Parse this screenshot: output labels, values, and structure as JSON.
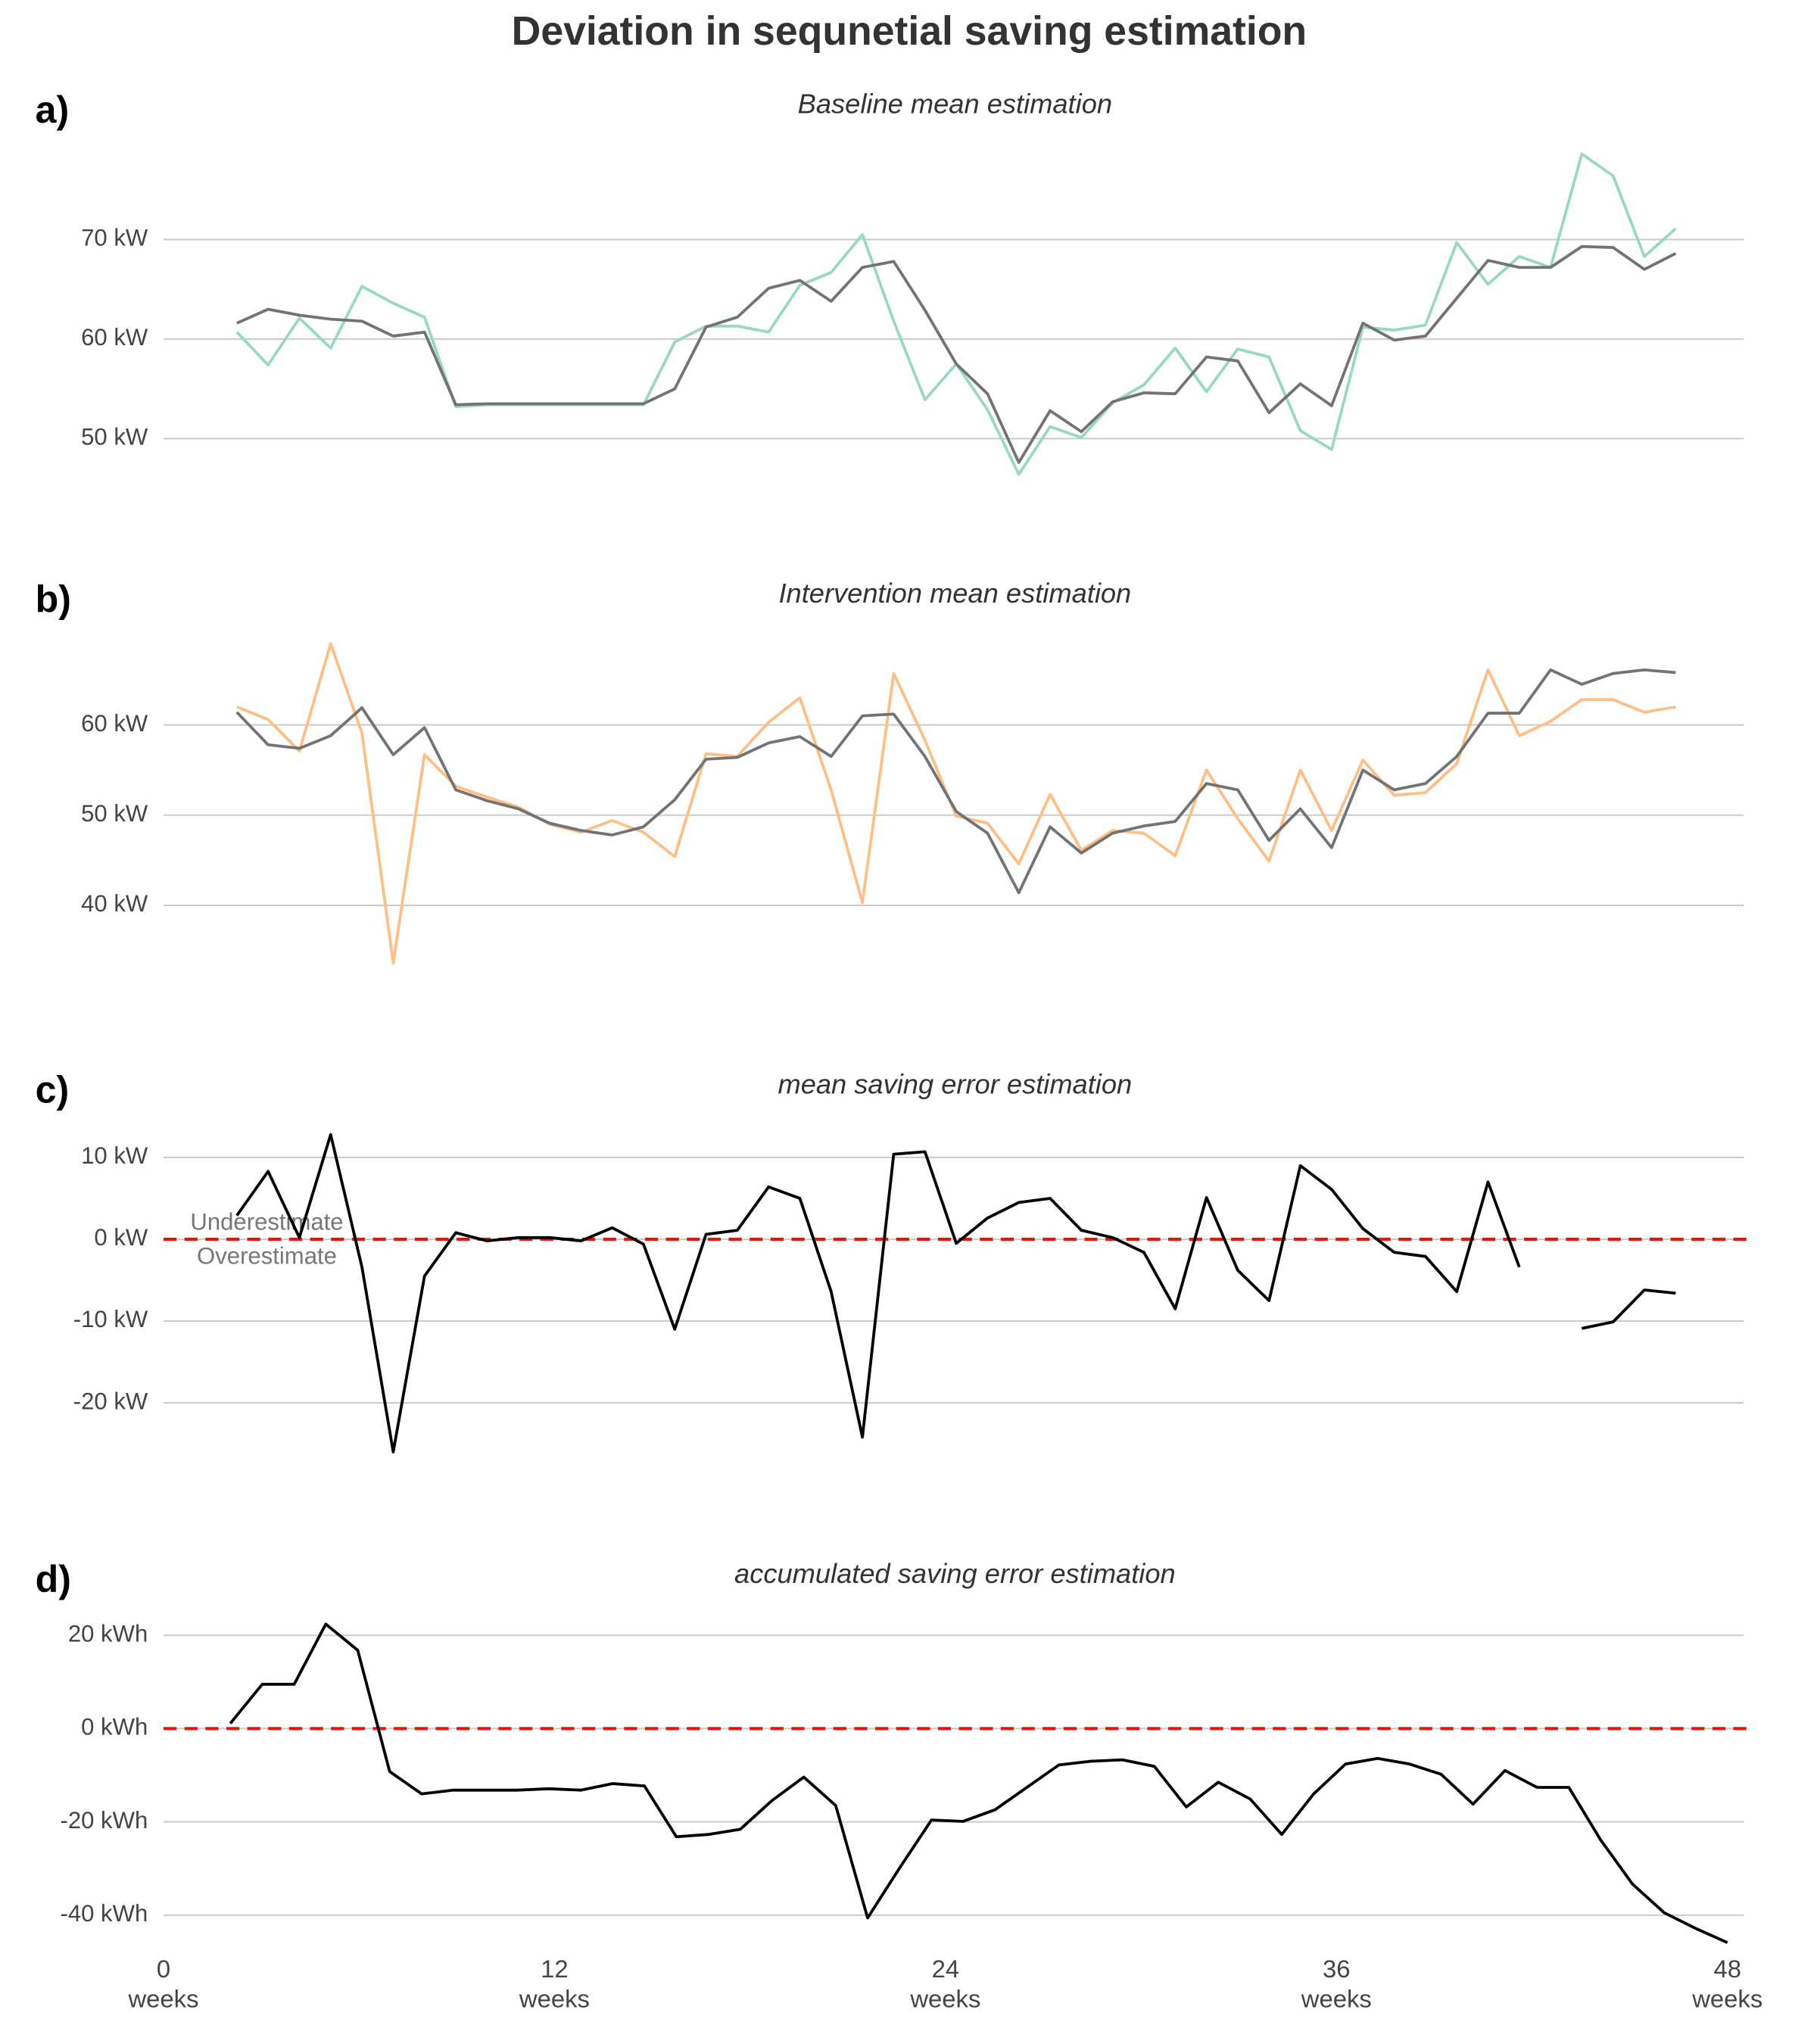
{
  "title": "Deviation in sequnetial saving estimation",
  "chart_data": [
    {
      "type": "line",
      "panel": "a)",
      "title": "Baseline mean estimation",
      "x": [
        2.25,
        3.21,
        4.17,
        5.13,
        6.09,
        7.05,
        8.01,
        8.97,
        9.93,
        10.89,
        11.85,
        12.81,
        13.77,
        14.73,
        15.69,
        16.65,
        17.61,
        18.57,
        19.53,
        20.49,
        21.45,
        22.41,
        23.37,
        24.33,
        25.29,
        26.25,
        27.21,
        28.17,
        29.13,
        30.09,
        31.05,
        32.01,
        32.97,
        33.93,
        34.89,
        35.85,
        36.81,
        37.77,
        38.73,
        39.69,
        40.65,
        41.61,
        42.57,
        43.53,
        44.49,
        45.45,
        46.41
      ],
      "series": [
        {
          "color": "#99d7c6",
          "values": [
            60.7,
            57.4,
            62.1,
            59.1,
            65.3,
            63.6,
            62.2,
            53.2,
            53.4,
            53.4,
            53.4,
            53.4,
            53.4,
            53.4,
            59.7,
            61.3,
            61.3,
            60.7,
            65.4,
            66.7,
            70.5,
            61.8,
            53.9,
            57.5,
            52.9,
            46.4,
            51.2,
            50.1,
            53.6,
            55.4,
            59.1,
            54.7,
            59.0,
            58.2,
            50.8,
            48.9,
            61.2,
            60.9,
            61.4,
            69.7,
            65.5,
            68.3,
            67.2,
            78.6,
            76.4,
            68.3,
            71.1
          ]
        },
        {
          "color": "#737373",
          "values": [
            61.6,
            63.0,
            62.4,
            62.0,
            61.8,
            60.3,
            60.7,
            53.4,
            53.5,
            53.5,
            53.5,
            53.5,
            53.5,
            53.5,
            55.0,
            61.2,
            62.2,
            65.1,
            65.9,
            63.8,
            67.2,
            67.8,
            62.9,
            57.5,
            54.5,
            47.6,
            52.8,
            50.7,
            53.7,
            54.6,
            54.5,
            58.2,
            57.8,
            52.6,
            55.5,
            53.3,
            61.6,
            59.9,
            60.3,
            64.1,
            67.9,
            67.2,
            67.2,
            69.3,
            69.2,
            67.0,
            68.6
          ]
        }
      ],
      "xlim": [
        0,
        48.5
      ],
      "ylim": [
        42,
        80
      ],
      "yticks": [
        {
          "value": 50,
          "label": "50 kW"
        },
        {
          "value": 60,
          "label": "60 kW"
        },
        {
          "value": 70,
          "label": "70 kW"
        }
      ],
      "grid": true
    },
    {
      "type": "line",
      "panel": "b)",
      "title": "Intervention mean estimation",
      "x": [
        2.25,
        3.21,
        4.17,
        5.13,
        6.09,
        7.05,
        8.01,
        8.97,
        9.93,
        10.89,
        11.85,
        12.81,
        13.77,
        14.73,
        15.69,
        16.65,
        17.61,
        18.57,
        19.53,
        20.49,
        21.45,
        22.41,
        23.37,
        24.33,
        25.29,
        26.25,
        27.21,
        28.17,
        29.13,
        30.09,
        31.05,
        32.01,
        32.97,
        33.93,
        34.89,
        35.85,
        36.81,
        37.77,
        38.73,
        39.69,
        40.65,
        41.61,
        42.57,
        43.53,
        44.49,
        45.45,
        46.41
      ],
      "series": [
        {
          "color": "#fdbf86",
          "values": [
            62.0,
            60.6,
            57.1,
            69.0,
            59.1,
            33.6,
            56.7,
            53.2,
            52.0,
            50.9,
            49.0,
            48.1,
            49.4,
            48.1,
            45.4,
            56.8,
            56.5,
            60.3,
            63.0,
            52.8,
            40.3,
            65.7,
            58.3,
            49.9,
            49.1,
            44.6,
            52.3,
            46.1,
            48.3,
            48.0,
            45.5,
            55.0,
            49.6,
            44.9,
            55.0,
            48.3,
            56.1,
            52.2,
            52.5,
            55.7,
            66.1,
            58.8,
            60.4,
            62.8,
            62.8,
            61.4,
            62.0
          ]
        },
        {
          "color": "#737373",
          "values": [
            61.4,
            57.8,
            57.4,
            58.8,
            61.9,
            56.7,
            59.7,
            52.8,
            51.6,
            50.7,
            49.1,
            48.3,
            47.8,
            48.7,
            51.7,
            56.2,
            56.4,
            58.0,
            58.7,
            56.5,
            61.0,
            61.2,
            56.5,
            50.4,
            48.0,
            41.4,
            48.7,
            45.8,
            48.0,
            48.8,
            49.3,
            53.5,
            52.8,
            47.2,
            50.7,
            46.4,
            55.0,
            52.8,
            53.5,
            56.5,
            61.3,
            61.3,
            66.1,
            64.5,
            65.7,
            66.1,
            65.8
          ]
        }
      ],
      "xlim": [
        0,
        48.5
      ],
      "ylim": [
        32,
        70
      ],
      "yticks": [
        {
          "value": 40,
          "label": "40 kW"
        },
        {
          "value": 50,
          "label": "50 kW"
        },
        {
          "value": 60,
          "label": "60 kW"
        }
      ],
      "grid": true
    },
    {
      "type": "line",
      "panel": "c)",
      "title": "mean saving error estimation",
      "x": [
        2.25,
        3.21,
        4.17,
        5.13,
        6.09,
        7.05,
        8.01,
        8.97,
        9.93,
        10.89,
        11.85,
        12.81,
        13.77,
        14.73,
        15.69,
        16.65,
        17.61,
        18.57,
        19.53,
        20.49,
        21.45,
        22.41,
        23.37,
        24.33,
        25.29,
        26.25,
        27.21,
        28.17,
        29.13,
        30.09,
        31.05,
        32.01,
        32.97,
        33.93,
        34.89,
        35.85,
        36.81,
        37.77,
        38.73,
        39.69,
        40.65,
        41.61,
        42.57,
        43.53,
        44.49,
        45.45,
        46.41
      ],
      "series": [
        {
          "color": "#000000",
          "values": [
            2.9,
            8.3,
            0.2,
            12.8,
            -3.4,
            -26.0,
            -4.5,
            0.8,
            -0.2,
            0.2,
            0.2,
            -0.2,
            1.4,
            -0.6,
            -11.0,
            0.6,
            1.1,
            6.4,
            5.0,
            -6.4,
            -24.2,
            10.4,
            10.7,
            -0.5,
            2.6,
            4.5,
            5.0,
            1.1,
            0.2,
            -1.6,
            -8.5,
            5.1,
            -3.8,
            -7.5,
            9.0,
            6.1,
            1.3,
            -1.6,
            -2.1,
            -6.4,
            7.0,
            -3.4,
            null,
            -10.9,
            -10.1,
            -6.2,
            -6.6
          ]
        }
      ],
      "reference_line": 0,
      "annotations": [
        "Underestimate",
        "Overestimate"
      ],
      "xlim": [
        0,
        48.5
      ],
      "ylim": [
        -28,
        16
      ],
      "yticks": [
        {
          "value": -20,
          "label": "-20 kW"
        },
        {
          "value": -10,
          "label": "-10 kW"
        },
        {
          "value": 0,
          "label": "0 kW"
        },
        {
          "value": 10,
          "label": "10 kW"
        }
      ],
      "grid": true
    },
    {
      "type": "line",
      "panel": "d)",
      "title": "accumulated saving error estimation",
      "x": [
        2.05,
        3.03,
        4.01,
        4.98,
        5.96,
        6.94,
        7.92,
        8.9,
        9.87,
        10.85,
        11.83,
        12.81,
        13.79,
        14.76,
        15.74,
        16.72,
        17.7,
        18.68,
        19.65,
        20.63,
        21.61,
        22.59,
        23.57,
        24.54,
        25.52,
        26.5,
        27.48,
        28.46,
        29.43,
        30.41,
        31.39,
        32.37,
        33.35,
        34.32,
        35.3,
        36.28,
        37.26,
        38.24,
        39.21,
        40.19,
        41.17,
        42.15,
        43.13,
        44.1,
        45.08,
        46.06,
        47.04,
        48.0
      ],
      "series": [
        {
          "color": "#000000",
          "values": [
            1.1,
            9.5,
            9.5,
            22.4,
            16.8,
            -9.2,
            -14.0,
            -13.2,
            -13.2,
            -13.2,
            -12.9,
            -13.2,
            -11.8,
            -12.3,
            -23.2,
            -22.7,
            -21.6,
            -15.4,
            -10.4,
            -16.5,
            -40.6,
            -29.9,
            -19.6,
            -19.9,
            -17.4,
            -12.6,
            -7.8,
            -7.0,
            -6.7,
            -8.1,
            -16.8,
            -11.5,
            -15.1,
            -22.7,
            -14.0,
            -7.6,
            -6.4,
            -7.6,
            -9.8,
            -16.2,
            -9.0,
            -12.6,
            -12.6,
            -23.8,
            -33.3,
            -39.5,
            -42.9,
            -45.9
          ]
        }
      ],
      "reference_line": 0,
      "xlim": [
        0,
        48.5
      ],
      "ylim": [
        -48,
        30
      ],
      "xticks": [
        {
          "value": 0,
          "label": "0\nweeks"
        },
        {
          "value": 12,
          "label": "12\nweeks"
        },
        {
          "value": 24,
          "label": "24\nweeks"
        },
        {
          "value": 36,
          "label": "36\nweeks"
        },
        {
          "value": 48,
          "label": "48\nweeks"
        }
      ],
      "yticks": [
        {
          "value": -40,
          "label": "-40 kWh"
        },
        {
          "value": -20,
          "label": "-20 kWh"
        },
        {
          "value": 0,
          "label": "0 kWh"
        },
        {
          "value": 20,
          "label": "20 kWh"
        }
      ],
      "grid": true
    }
  ]
}
